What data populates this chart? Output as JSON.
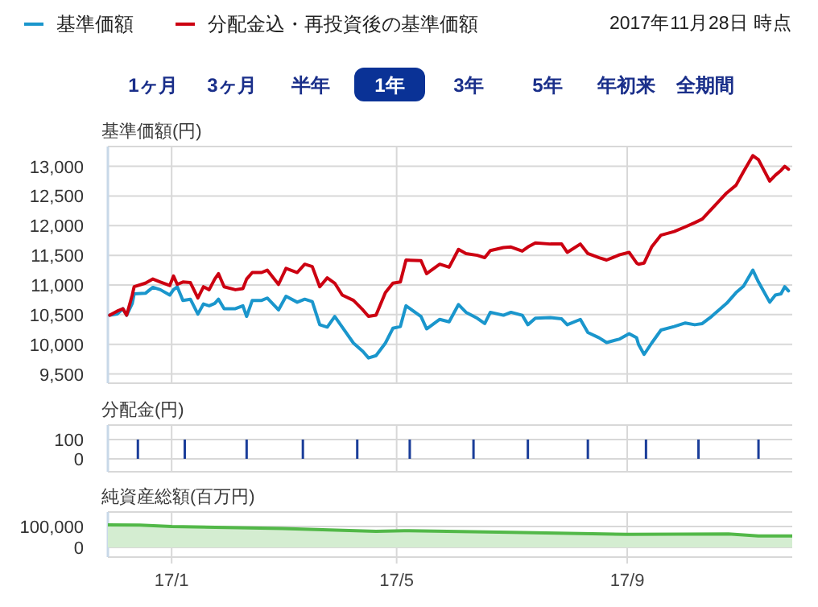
{
  "chart_data": [
    {
      "type": "line",
      "ylabel": "基準価額(円)",
      "legend": "top left",
      "grid": true,
      "tick_labels": "y",
      "annotations": [
        "2017年11月28日 時点",
        "1ヶ月",
        "3ヶ月",
        "半年",
        "1年",
        "3年",
        "5年",
        "年初来",
        "全期間"
      ],
      "xlim": [
        "2016-11-28",
        "2017-11-28"
      ],
      "xticks": [
        {
          "value": "2017-01-01",
          "label": null
        },
        {
          "value": "2017-05-01",
          "label": null
        },
        {
          "value": "2017-09-01",
          "label": null
        }
      ],
      "ylim": [
        9345,
        13333
      ],
      "yticks": [
        {
          "value": 9500,
          "label": "9,500"
        },
        {
          "value": 10000,
          "label": "10,000"
        },
        {
          "value": 10500,
          "label": "10,500"
        },
        {
          "value": 11000,
          "label": "11,000"
        },
        {
          "value": 11500,
          "label": "11,500"
        },
        {
          "value": 12000,
          "label": "12,000"
        },
        {
          "value": 12500,
          "label": "12,500"
        },
        {
          "value": 13000,
          "label": "13,000"
        }
      ],
      "x": [
        "2016-11-29",
        "2016-12-03",
        "2016-12-06",
        "2016-12-08",
        "2016-12-11",
        "2016-12-12",
        "2016-12-18",
        "2016-12-22",
        "2016-12-26",
        "2016-12-31",
        "2017-01-02",
        "2017-01-04",
        "2017-01-07",
        "2017-01-11",
        "2017-01-15",
        "2017-01-18",
        "2017-01-21",
        "2017-01-24",
        "2017-01-26",
        "2017-01-29",
        "2017-02-04",
        "2017-02-08",
        "2017-02-10",
        "2017-02-13",
        "2017-02-18",
        "2017-02-21",
        "2017-02-27",
        "2017-03-03",
        "2017-03-09",
        "2017-03-13",
        "2017-03-17",
        "2017-03-21",
        "2017-03-25",
        "2017-03-29",
        "2017-04-02",
        "2017-04-08",
        "2017-04-13",
        "2017-04-16",
        "2017-04-20",
        "2017-04-25",
        "2017-04-29",
        "2017-05-03",
        "2017-05-06",
        "2017-05-14",
        "2017-05-17",
        "2017-05-24",
        "2017-05-29",
        "2017-06-03",
        "2017-06-07",
        "2017-06-13",
        "2017-06-17",
        "2017-06-20",
        "2017-06-27",
        "2017-07-01",
        "2017-07-07",
        "2017-07-10",
        "2017-07-14",
        "2017-07-22",
        "2017-07-28",
        "2017-07-31",
        "2017-08-07",
        "2017-08-11",
        "2017-08-17",
        "2017-08-21",
        "2017-08-28",
        "2017-09-02",
        "2017-09-06",
        "2017-09-07",
        "2017-09-10",
        "2017-09-14",
        "2017-09-19",
        "2017-09-26",
        "2017-10-02",
        "2017-10-07",
        "2017-10-11",
        "2017-10-16",
        "2017-10-24",
        "2017-10-29",
        "2017-11-02",
        "2017-11-07",
        "2017-11-10",
        "2017-11-16",
        "2017-11-19",
        "2017-11-22",
        "2017-11-24",
        "2017-11-26"
      ],
      "series": [
        {
          "name": "基準価額",
          "color": "#1a96cc",
          "values": [
            10490,
            10510,
            10600,
            10490,
            10690,
            10850,
            10860,
            10960,
            10920,
            10830,
            10920,
            10970,
            10740,
            10760,
            10510,
            10680,
            10650,
            10690,
            10760,
            10600,
            10600,
            10650,
            10470,
            10740,
            10740,
            10780,
            10580,
            10810,
            10710,
            10760,
            10720,
            10330,
            10290,
            10470,
            10290,
            10020,
            9880,
            9770,
            9810,
            10020,
            10270,
            10300,
            10650,
            10470,
            10260,
            10420,
            10380,
            10670,
            10540,
            10440,
            10350,
            10540,
            10490,
            10540,
            10490,
            10330,
            10440,
            10450,
            10430,
            10330,
            10420,
            10200,
            10110,
            10030,
            10090,
            10180,
            10110,
            10000,
            9830,
            10020,
            10240,
            10300,
            10360,
            10330,
            10350,
            10470,
            10690,
            10870,
            10980,
            11250,
            11050,
            10710,
            10830,
            10850,
            10970,
            10900
          ]
        },
        {
          "name": "分配金込・再投資後の基準価額",
          "color": "#cc0011",
          "values": [
            10490,
            10560,
            10600,
            10490,
            10830,
            10970,
            11030,
            11100,
            11050,
            10990,
            11150,
            11010,
            11050,
            11040,
            10780,
            10970,
            10920,
            11100,
            11190,
            10970,
            10920,
            10940,
            11100,
            11210,
            11210,
            11250,
            11010,
            11280,
            11210,
            11350,
            11310,
            10970,
            11120,
            11030,
            10830,
            10740,
            10580,
            10470,
            10490,
            10870,
            11030,
            11050,
            11420,
            11410,
            11190,
            11350,
            11300,
            11600,
            11530,
            11500,
            11460,
            11580,
            11630,
            11640,
            11570,
            11640,
            11710,
            11690,
            11690,
            11550,
            11690,
            11530,
            11460,
            11420,
            11510,
            11550,
            11370,
            11350,
            11370,
            11640,
            11840,
            11900,
            11980,
            12050,
            12110,
            12280,
            12550,
            12680,
            12910,
            13180,
            13110,
            12750,
            12850,
            12930,
            13000,
            12950
          ]
        }
      ]
    },
    {
      "type": "bar",
      "ylabel": "分配金(円)",
      "grid": true,
      "tick_labels": "y",
      "xlim": [
        "2016-11-28",
        "2017-11-28"
      ],
      "xticks": [
        {
          "value": "2017-01-01",
          "label": null
        },
        {
          "value": "2017-05-01",
          "label": null
        },
        {
          "value": "2017-09-01",
          "label": null
        }
      ],
      "ylim": [
        -67,
        175
      ],
      "yticks": [
        {
          "value": 0,
          "label": "0"
        },
        {
          "value": 100,
          "label": "100"
        }
      ],
      "x": [
        "2016-12-14",
        "2017-01-08",
        "2017-02-10",
        "2017-03-12",
        "2017-04-10",
        "2017-05-08",
        "2017-06-11",
        "2017-07-10",
        "2017-08-11",
        "2017-09-11",
        "2017-10-09",
        "2017-11-10"
      ],
      "values": [
        100,
        100,
        100,
        100,
        100,
        100,
        100,
        100,
        100,
        100,
        100,
        100
      ],
      "color": "#1a3d99"
    },
    {
      "type": "area",
      "ylabel": "純資産総額(百万円)",
      "grid": true,
      "xlim": [
        "2016-11-28",
        "2017-11-28"
      ],
      "xticks": [
        {
          "value": "2017-01-01",
          "label": "17/1"
        },
        {
          "value": "2017-05-01",
          "label": "17/5"
        },
        {
          "value": "2017-09-01",
          "label": "17/9"
        }
      ],
      "ylim": [
        -46000,
        169000
      ],
      "yticks": [
        {
          "value": 0,
          "label": "0"
        },
        {
          "value": 100000,
          "label": "100,000"
        }
      ],
      "x": [
        "2016-11-28",
        "2016-12-15",
        "2017-01-01",
        "2017-03-01",
        "2017-04-20",
        "2017-05-05",
        "2017-07-01",
        "2017-09-01",
        "2017-10-25",
        "2017-11-10",
        "2017-11-28"
      ],
      "values": [
        108000,
        107000,
        100000,
        90000,
        77000,
        80000,
        72000,
        62000,
        64000,
        55000,
        55000
      ],
      "color": "#52b848"
    }
  ]
}
